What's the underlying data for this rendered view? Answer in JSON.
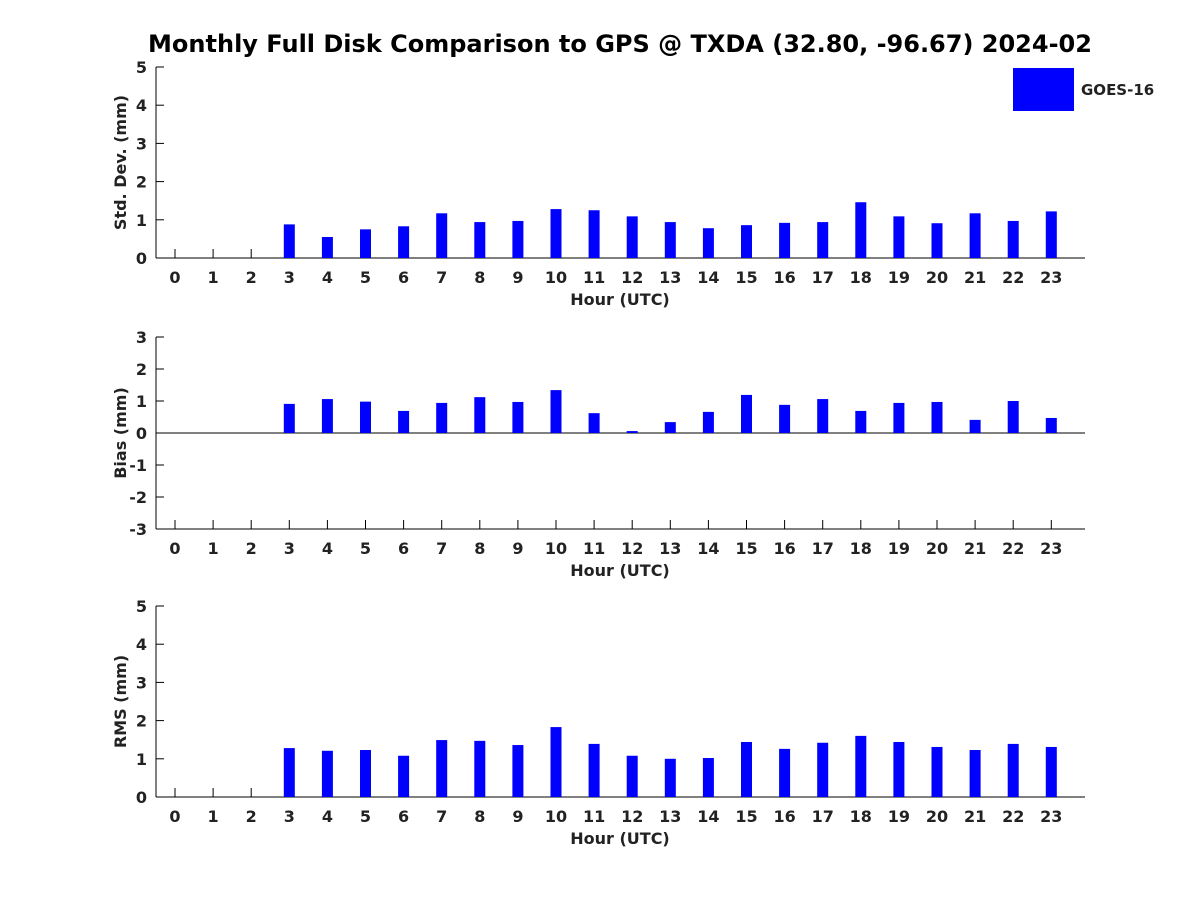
{
  "title": "Monthly Full Disk Comparison to GPS @ TXDA (32.80, -96.67) 2024-02",
  "colors": {
    "bar": "#0000ff",
    "axis": "#000000"
  },
  "legend": {
    "label": "GOES-16",
    "placement": "top-right"
  },
  "chart_data": [
    {
      "type": "bar",
      "xlabel": "Hour (UTC)",
      "ylabel": "Std. Dev. (mm)",
      "ylim": [
        0,
        5
      ],
      "yticks": [
        0,
        1,
        2,
        3,
        4,
        5
      ],
      "categories": [
        "0",
        "1",
        "2",
        "3",
        "4",
        "5",
        "6",
        "7",
        "8",
        "9",
        "10",
        "11",
        "12",
        "13",
        "14",
        "15",
        "16",
        "17",
        "18",
        "19",
        "20",
        "21",
        "22",
        "23"
      ],
      "series": [
        {
          "name": "GOES-16",
          "values": [
            null,
            null,
            null,
            0.88,
            0.55,
            0.75,
            0.83,
            1.17,
            0.94,
            0.97,
            1.28,
            1.25,
            1.09,
            0.94,
            0.78,
            0.86,
            0.92,
            0.94,
            1.46,
            1.09,
            0.91,
            1.17,
            0.97,
            1.22
          ]
        }
      ]
    },
    {
      "type": "bar",
      "xlabel": "Hour (UTC)",
      "ylabel": "Bias (mm)",
      "ylim": [
        -3,
        3
      ],
      "yticks": [
        -3,
        -2,
        -1,
        0,
        1,
        2,
        3
      ],
      "categories": [
        "0",
        "1",
        "2",
        "3",
        "4",
        "5",
        "6",
        "7",
        "8",
        "9",
        "10",
        "11",
        "12",
        "13",
        "14",
        "15",
        "16",
        "17",
        "18",
        "19",
        "20",
        "21",
        "22",
        "23"
      ],
      "series": [
        {
          "name": "GOES-16",
          "values": [
            null,
            null,
            null,
            0.91,
            1.06,
            0.98,
            0.69,
            0.94,
            1.12,
            0.97,
            1.34,
            0.62,
            0.06,
            0.34,
            0.66,
            1.19,
            0.88,
            1.06,
            0.69,
            0.94,
            0.97,
            0.41,
            1.0,
            0.47
          ]
        }
      ]
    },
    {
      "type": "bar",
      "xlabel": "Hour (UTC)",
      "ylabel": "RMS (mm)",
      "ylim": [
        0,
        5
      ],
      "yticks": [
        0,
        1,
        2,
        3,
        4,
        5
      ],
      "categories": [
        "0",
        "1",
        "2",
        "3",
        "4",
        "5",
        "6",
        "7",
        "8",
        "9",
        "10",
        "11",
        "12",
        "13",
        "14",
        "15",
        "16",
        "17",
        "18",
        "19",
        "20",
        "21",
        "22",
        "23"
      ],
      "series": [
        {
          "name": "GOES-16",
          "values": [
            null,
            null,
            null,
            1.28,
            1.21,
            1.23,
            1.08,
            1.49,
            1.47,
            1.36,
            1.83,
            1.39,
            1.08,
            1.0,
            1.02,
            1.44,
            1.26,
            1.42,
            1.6,
            1.44,
            1.31,
            1.23,
            1.39,
            1.31
          ]
        }
      ]
    }
  ]
}
